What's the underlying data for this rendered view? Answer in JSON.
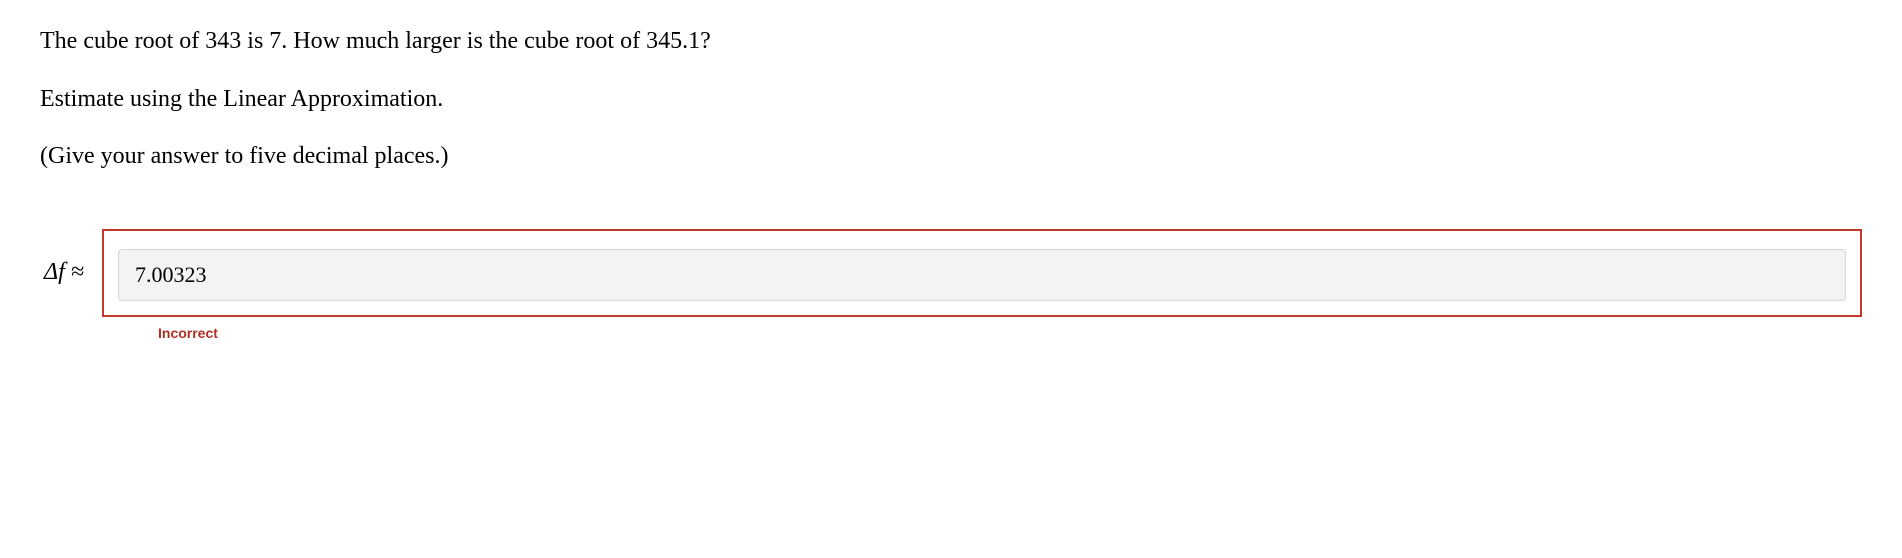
{
  "question": {
    "line1": "The cube root of 343 is 7. How much larger is the cube root of 345.1?",
    "line2": "Estimate using the Linear Approximation.",
    "line3": "(Give your answer to five decimal places.)"
  },
  "answer": {
    "label": "Δf  ≈",
    "value": "7.00323",
    "input_bg": "#f3f3f3",
    "input_border": "#d6d6d6",
    "box_border": "#c0392b"
  },
  "feedback": {
    "text": "Incorrect",
    "color": "#b03024"
  }
}
